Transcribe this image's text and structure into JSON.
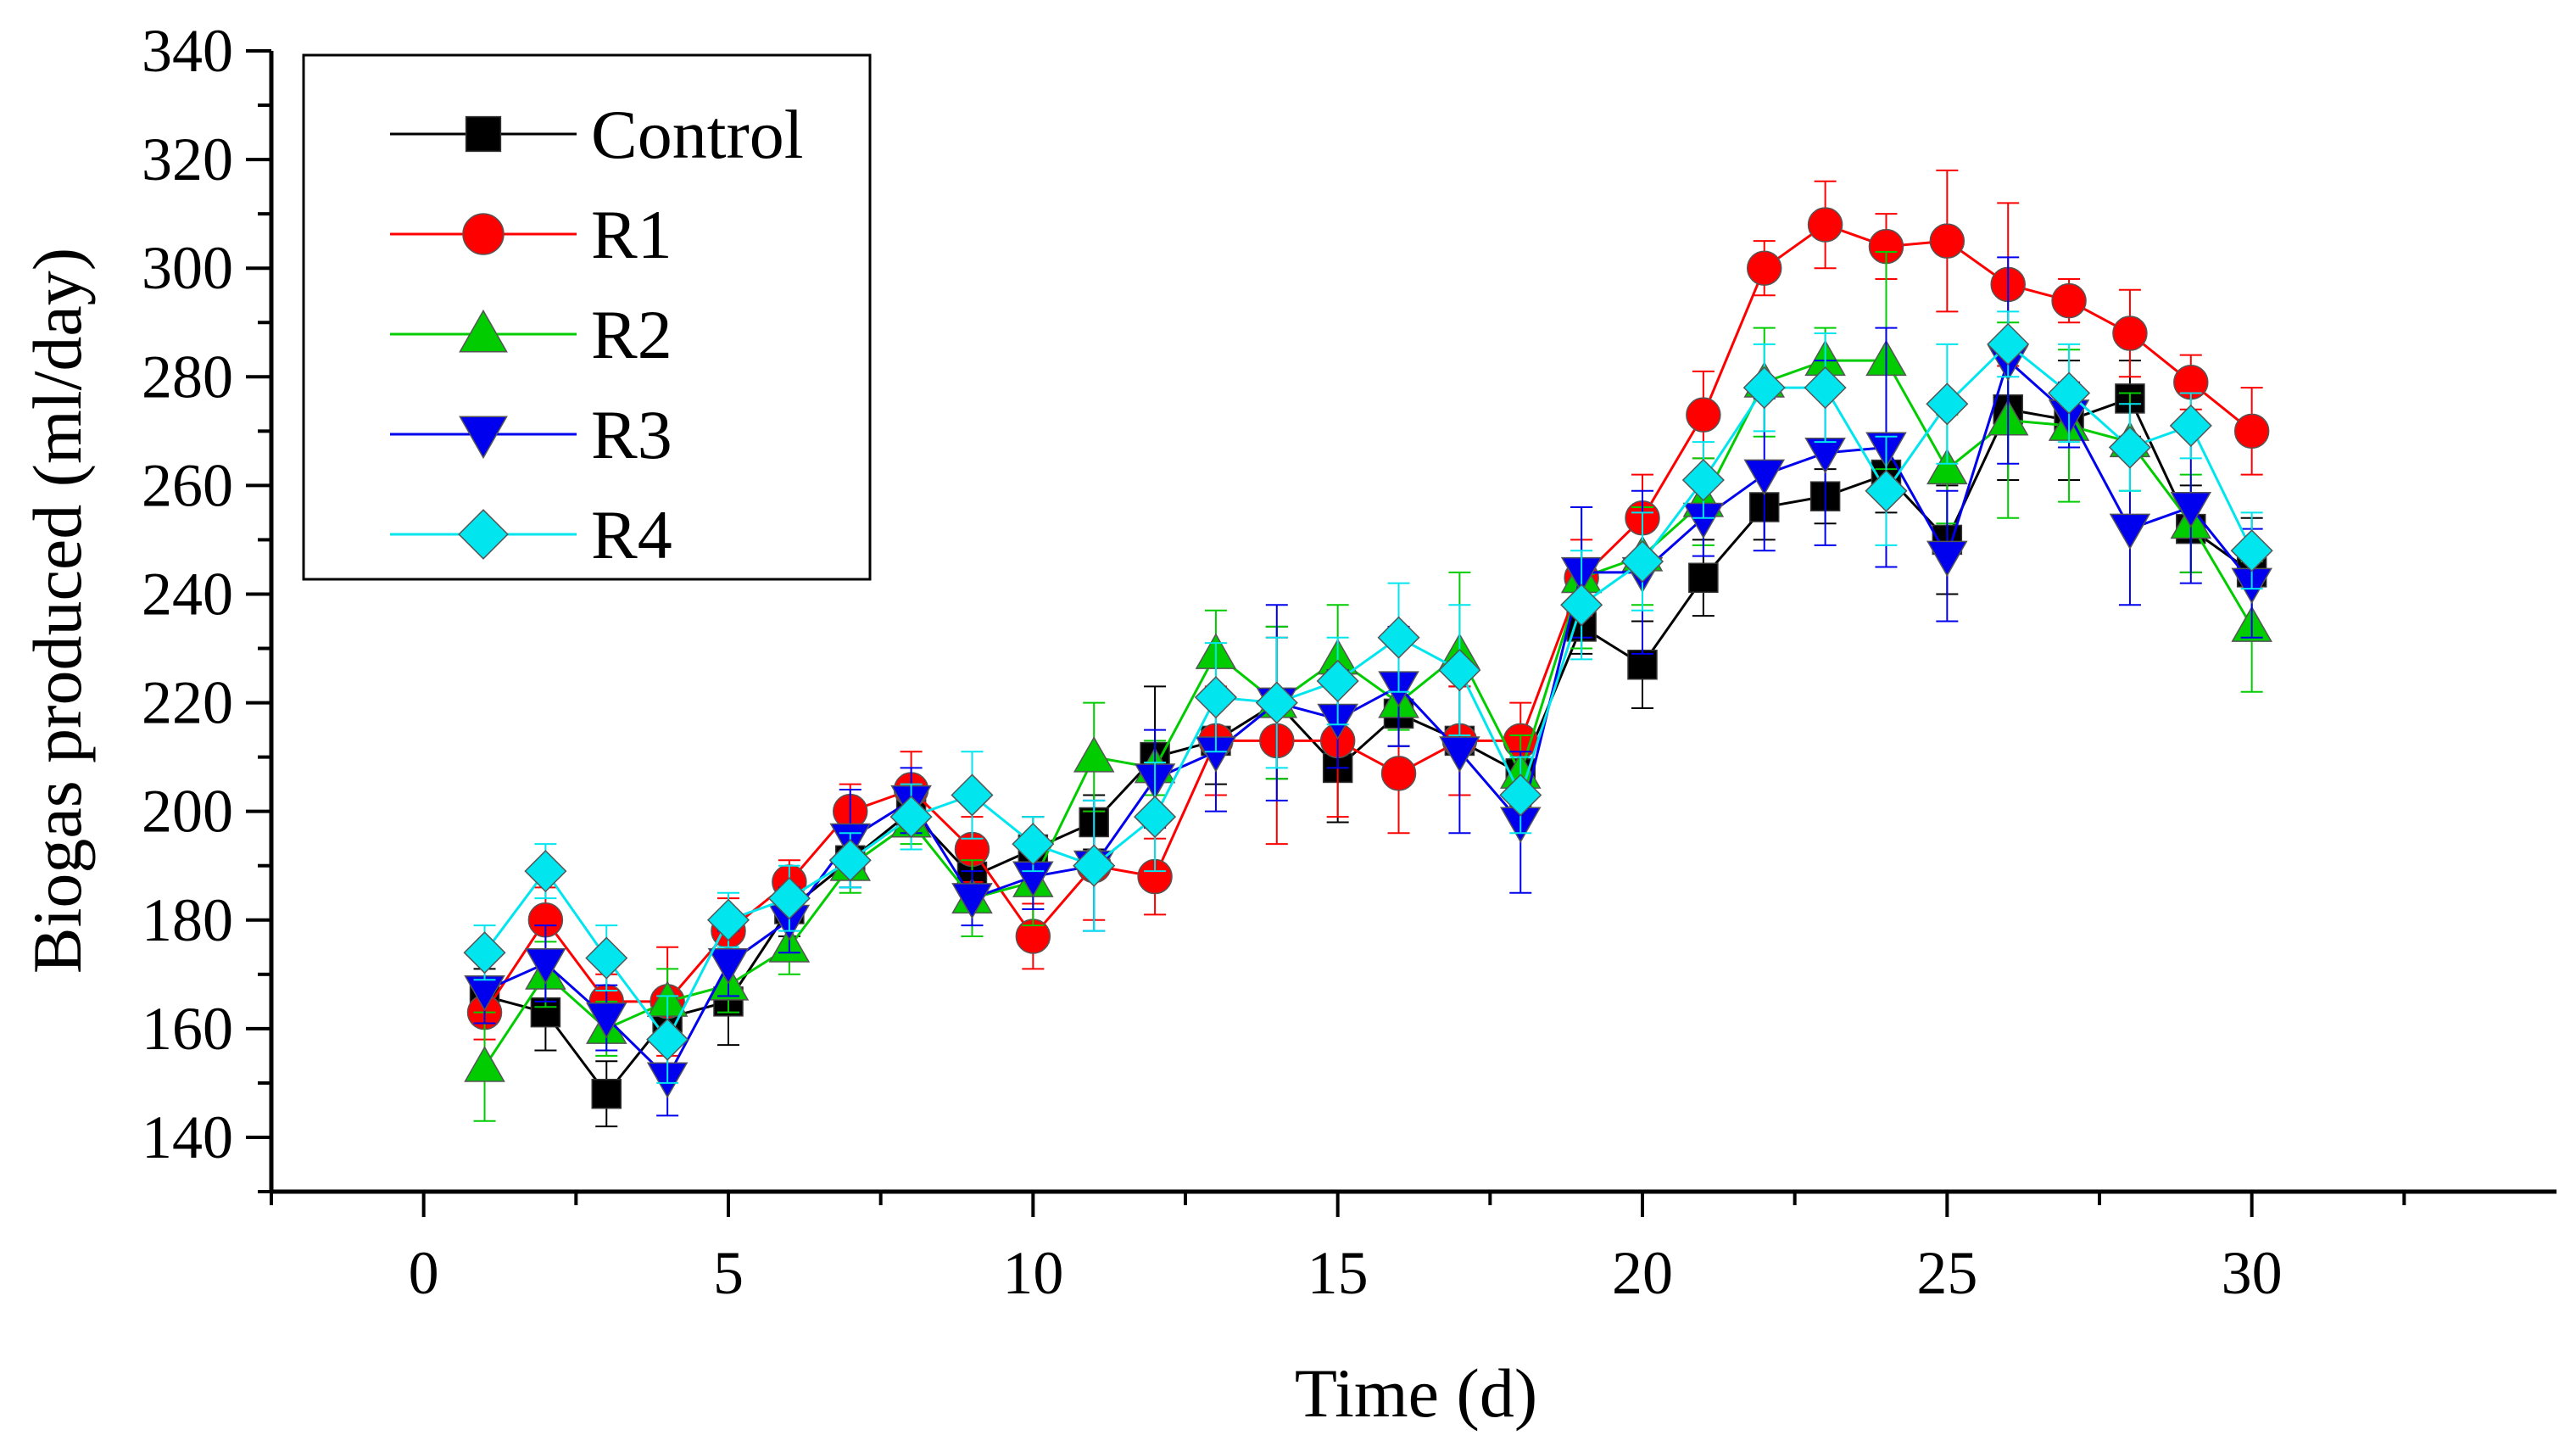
{
  "chart_data": {
    "type": "line",
    "title": "",
    "xlabel": "Time (d)",
    "ylabel": "Biogas produced (ml/day)",
    "xlim": [
      -2.5,
      35
    ],
    "ylim": [
      130,
      340
    ],
    "x_ticks": [
      0,
      5,
      10,
      15,
      20,
      25,
      30
    ],
    "x_tick_labels": [
      "0",
      "5",
      "10",
      "15",
      "20",
      "25",
      "30"
    ],
    "y_ticks": [
      140,
      160,
      180,
      200,
      220,
      240,
      260,
      280,
      300,
      320,
      340
    ],
    "y_tick_labels": [
      "140",
      "160",
      "180",
      "200",
      "220",
      "240",
      "260",
      "280",
      "300",
      "320",
      "340"
    ],
    "grid": false,
    "legend_position": "top-left",
    "error_bars": true,
    "x": [
      1,
      2,
      3,
      4,
      5,
      6,
      7,
      8,
      9,
      10,
      11,
      12,
      13,
      14,
      15,
      16,
      17,
      18,
      19,
      20,
      21,
      22,
      23,
      24,
      25,
      26,
      27,
      28,
      29,
      30
    ],
    "series": [
      {
        "name": "Control",
        "color": "#000000",
        "marker": "square",
        "values": [
          166,
          163,
          148,
          162,
          165,
          182,
          191,
          200,
          188,
          193,
          198,
          210,
          213,
          220,
          208,
          218,
          213,
          207,
          234,
          227,
          243,
          256,
          258,
          262,
          250,
          274,
          272,
          276,
          252,
          244
        ],
        "errors": [
          5,
          7,
          6,
          5,
          8,
          5,
          5,
          4,
          6,
          6,
          5,
          13,
          8,
          14,
          10,
          6,
          10,
          6,
          5,
          8,
          7,
          6,
          5,
          7,
          10,
          13,
          11,
          7,
          8,
          10
        ]
      },
      {
        "name": "R1",
        "color": "#ff0000",
        "marker": "circle",
        "values": [
          163,
          180,
          165,
          165,
          178,
          187,
          200,
          204,
          193,
          177,
          190,
          188,
          213,
          213,
          213,
          207,
          213,
          213,
          243,
          254,
          273,
          300,
          308,
          304,
          305,
          297,
          294,
          288,
          279,
          270
        ],
        "errors": [
          5,
          6,
          5,
          10,
          6,
          4,
          5,
          7,
          6,
          6,
          10,
          7,
          10,
          19,
          14,
          11,
          10,
          7,
          7,
          8,
          8,
          5,
          8,
          6,
          13,
          15,
          4,
          8,
          5,
          8
        ]
      },
      {
        "name": "R2",
        "color": "#00cc00",
        "marker": "triangle-up",
        "values": [
          153,
          170,
          160,
          165,
          168,
          175,
          190,
          198,
          184,
          187,
          210,
          208,
          229,
          220,
          228,
          220,
          229,
          207,
          243,
          247,
          257,
          279,
          283,
          283,
          263,
          272,
          271,
          268,
          253,
          234
        ],
        "errors": [
          10,
          6,
          5,
          6,
          5,
          5,
          5,
          4,
          7,
          8,
          10,
          5,
          8,
          14,
          10,
          5,
          15,
          7,
          13,
          9,
          8,
          10,
          6,
          20,
          10,
          18,
          14,
          9,
          9,
          12
        ]
      },
      {
        "name": "R3",
        "color": "#0000ee",
        "marker": "triangle-down",
        "values": [
          167,
          172,
          162,
          151,
          172,
          180,
          195,
          202,
          184,
          188,
          190,
          206,
          211,
          220,
          217,
          223,
          211,
          198,
          244,
          244,
          254,
          262,
          266,
          267,
          247,
          283,
          273,
          252,
          256,
          242
        ],
        "errors": [
          6,
          7,
          6,
          7,
          6,
          6,
          9,
          6,
          5,
          6,
          12,
          9,
          11,
          18,
          9,
          11,
          15,
          13,
          12,
          15,
          7,
          14,
          17,
          22,
          12,
          19,
          6,
          14,
          14,
          10
        ]
      },
      {
        "name": "R4",
        "color": "#00e5ee",
        "marker": "diamond",
        "values": [
          174,
          189,
          173,
          158,
          180,
          184,
          191,
          199,
          203,
          194,
          190,
          199,
          221,
          220,
          224,
          232,
          226,
          203,
          238,
          246,
          261,
          278,
          278,
          259,
          275,
          286,
          277,
          267,
          271,
          248
        ],
        "errors": [
          5,
          5,
          6,
          8,
          5,
          6,
          5,
          6,
          8,
          5,
          12,
          10,
          10,
          12,
          8,
          10,
          12,
          7,
          10,
          9,
          7,
          8,
          10,
          10,
          11,
          6,
          9,
          8,
          6,
          7
        ]
      }
    ]
  }
}
